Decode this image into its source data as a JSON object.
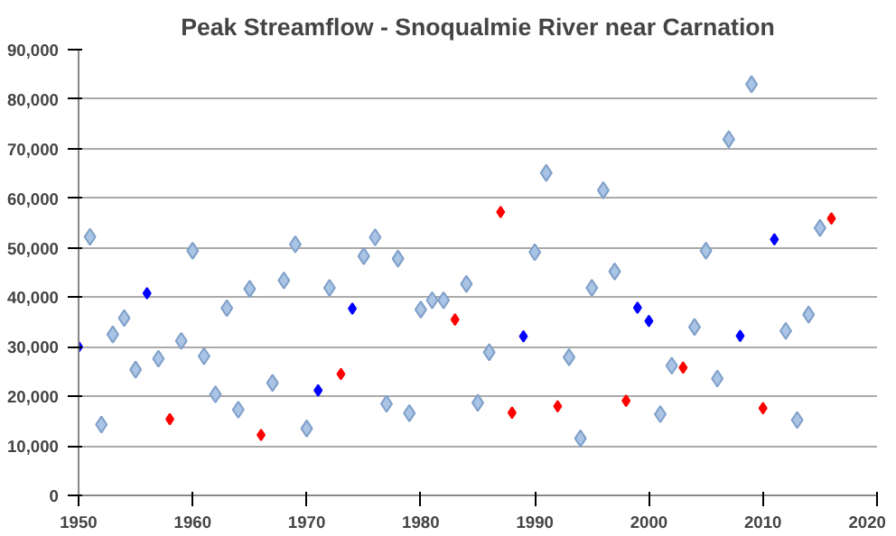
{
  "chart_data": {
    "type": "scatter",
    "title": "Peak Streamflow - Snoqualmie River near Carnation",
    "marker": "diamond",
    "grid": "y",
    "xlim": [
      1950,
      2020
    ],
    "xticks": [
      1950,
      1960,
      1970,
      1980,
      1990,
      2000,
      2010,
      2020
    ],
    "ylim": [
      0,
      90000
    ],
    "yticks": [
      0,
      {
        "value": 10000,
        "label": "10,000"
      },
      {
        "value": 20000,
        "label": "20,000"
      },
      {
        "value": 30000,
        "label": "30,000"
      },
      {
        "value": 40000,
        "label": "40,000"
      },
      {
        "value": 50000,
        "label": "50,000"
      },
      {
        "value": 60000,
        "label": "60,000"
      },
      {
        "value": 70000,
        "label": "70,000"
      },
      {
        "value": 80000,
        "label": "80,000"
      },
      {
        "value": 90000,
        "label": "90,000"
      }
    ],
    "series": [
      {
        "color": "#a9c4e4",
        "x": [
          1951,
          1952,
          1953,
          1954,
          1955,
          1957,
          1959,
          1960,
          1961,
          1962,
          1963,
          1964,
          1965,
          1967,
          1968,
          1969,
          1970,
          1972,
          1975,
          1976,
          1977,
          1978,
          1979,
          1980,
          1981,
          1982,
          1984,
          1985,
          1986,
          1990,
          1991,
          1993,
          1994,
          1995,
          1996,
          1997,
          2001,
          2002,
          2004,
          2005,
          2006,
          2007,
          2009,
          2012,
          2013,
          2014,
          2015
        ],
        "values": [
          52200,
          14300,
          32500,
          35800,
          25400,
          27600,
          31200,
          49400,
          28100,
          20400,
          37800,
          17300,
          41700,
          22700,
          43400,
          50700,
          13500,
          41900,
          48300,
          52100,
          18500,
          47800,
          16600,
          37500,
          39400,
          39400,
          42700,
          18700,
          28900,
          49100,
          65100,
          27900,
          11500,
          41900,
          61600,
          45200,
          16400,
          26200,
          34000,
          49400,
          23600,
          71900,
          83000,
          33200,
          15200,
          36500,
          54000
        ]
      },
      {
        "color": "#0000ff",
        "x": [
          1950,
          1956,
          1971,
          1974,
          1989,
          1999,
          2000,
          2008,
          2011
        ],
        "values": [
          30000,
          40800,
          21200,
          37700,
          32100,
          37900,
          35200,
          32200,
          51700
        ]
      },
      {
        "color": "#ff0000",
        "x": [
          1958,
          1966,
          1973,
          1983,
          1987,
          1988,
          1992,
          1998,
          2003,
          2010,
          2016
        ],
        "values": [
          15400,
          12200,
          24500,
          35500,
          57200,
          16700,
          18000,
          19100,
          25800,
          17600,
          55900
        ]
      }
    ]
  }
}
